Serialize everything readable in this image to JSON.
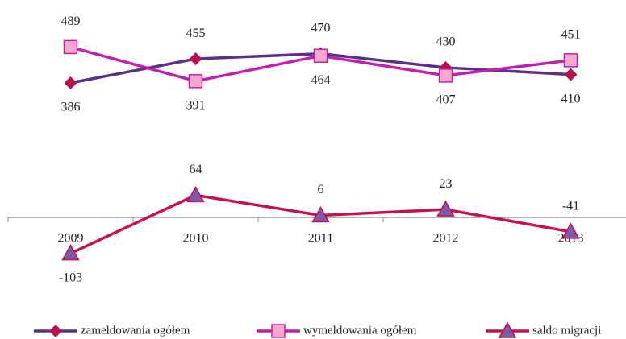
{
  "chart_data": {
    "type": "line",
    "categories": [
      "2009",
      "2010",
      "2011",
      "2012",
      "2013"
    ],
    "series": [
      {
        "name": "zameldowania ogółem",
        "color": "#5b2f8a",
        "marker": "diamond",
        "marker_color": "#b5124e",
        "values": [
          386,
          455,
          470,
          430,
          410
        ]
      },
      {
        "name": "wymeldowania ogółem",
        "color": "#c21fb0",
        "marker": "square",
        "marker_color": "#f8a8cc",
        "values": [
          489,
          391,
          464,
          407,
          451
        ]
      },
      {
        "name": "saldo migracji",
        "color": "#c8114c",
        "marker": "triangle",
        "marker_color": "#7b5aa8",
        "values": [
          -103,
          64,
          6,
          23,
          -41
        ]
      }
    ],
    "ylim": [
      -150,
      550
    ]
  }
}
